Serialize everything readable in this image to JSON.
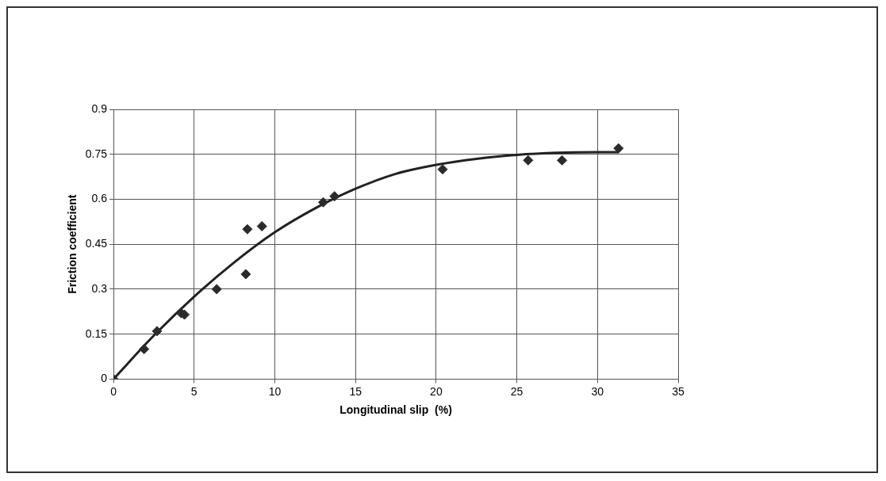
{
  "chart_data": {
    "type": "scatter",
    "xlabel": "Longitudinal slip  (%)",
    "ylabel": "Friction coefficient",
    "xlim": [
      0,
      35
    ],
    "xticks": [
      0,
      5,
      10,
      15,
      20,
      25,
      30,
      35
    ],
    "ylim": [
      0,
      0.9
    ],
    "yticks": [
      0,
      0.15,
      0.3,
      0.45,
      0.6,
      0.75,
      0.9
    ],
    "grid": true,
    "legend": false,
    "series": [
      {
        "marker": "diamond",
        "color": "#2b2b2b",
        "x": [
          0,
          1.9,
          2.7,
          4.2,
          4.4,
          6.4,
          8.2,
          8.3,
          9.2,
          13.0,
          13.7,
          20.4,
          25.7,
          27.8,
          31.3
        ],
        "values": [
          0,
          0.1,
          0.16,
          0.22,
          0.215,
          0.3,
          0.35,
          0.5,
          0.51,
          0.59,
          0.61,
          0.7,
          0.73,
          0.73,
          0.77
        ]
      },
      {
        "type": "line",
        "marker": "none",
        "color": "#222222",
        "x": [
          0,
          2.5,
          5,
          7.5,
          10,
          12.5,
          15,
          17.5,
          20,
          22.5,
          25,
          27.5,
          30,
          31.3
        ],
        "values": [
          0,
          0.145,
          0.275,
          0.39,
          0.49,
          0.57,
          0.635,
          0.685,
          0.715,
          0.735,
          0.748,
          0.755,
          0.757,
          0.757
        ]
      }
    ]
  }
}
